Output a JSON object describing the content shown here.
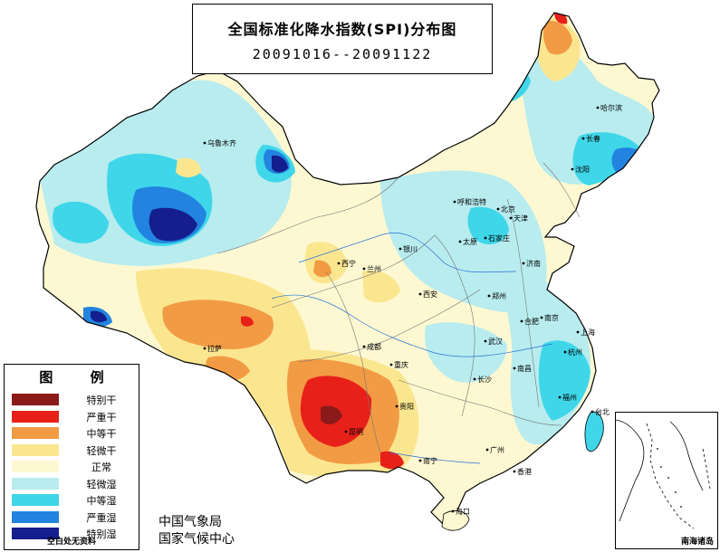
{
  "title": "全国标准化降水指数(SPI)分布图",
  "date_range": "20091016--20091122",
  "legend": {
    "title": "图 例",
    "items": [
      {
        "label": "特别干",
        "color": "#8b1a1a"
      },
      {
        "label": "严重干",
        "color": "#e8201a"
      },
      {
        "label": "中等干",
        "color": "#f29b45"
      },
      {
        "label": "轻微干",
        "color": "#fbe690"
      },
      {
        "label": "正常",
        "color": "#fdf8d2"
      },
      {
        "label": "轻微湿",
        "color": "#b8ecef"
      },
      {
        "label": "中等湿",
        "color": "#3fd6e9"
      },
      {
        "label": "严重湿",
        "color": "#2283e0"
      },
      {
        "label": "特别湿",
        "color": "#141e8c"
      }
    ],
    "note": "空白处无资料"
  },
  "organizations": [
    "中国气象局",
    "国家气候中心"
  ],
  "inset_label": "南海诸岛",
  "cities": [
    {
      "name": "乌鲁木齐"
    },
    {
      "name": "呼和浩特"
    },
    {
      "name": "北京"
    },
    {
      "name": "天津"
    },
    {
      "name": "哈尔滨"
    },
    {
      "name": "长春"
    },
    {
      "name": "沈阳"
    },
    {
      "name": "石家庄"
    },
    {
      "name": "太原"
    },
    {
      "name": "济南"
    },
    {
      "name": "银川"
    },
    {
      "name": "西宁"
    },
    {
      "name": "兰州"
    },
    {
      "name": "西安"
    },
    {
      "name": "郑州"
    },
    {
      "name": "合肥"
    },
    {
      "name": "南京"
    },
    {
      "name": "上海"
    },
    {
      "name": "杭州"
    },
    {
      "name": "武汉"
    },
    {
      "name": "南昌"
    },
    {
      "name": "福州"
    },
    {
      "name": "长沙"
    },
    {
      "name": "重庆"
    },
    {
      "name": "成都"
    },
    {
      "name": "拉萨"
    },
    {
      "name": "贵阳"
    },
    {
      "name": "昆明"
    },
    {
      "name": "南宁"
    },
    {
      "name": "广州"
    },
    {
      "name": "香港"
    },
    {
      "name": "海口"
    },
    {
      "name": "台北"
    }
  ]
}
